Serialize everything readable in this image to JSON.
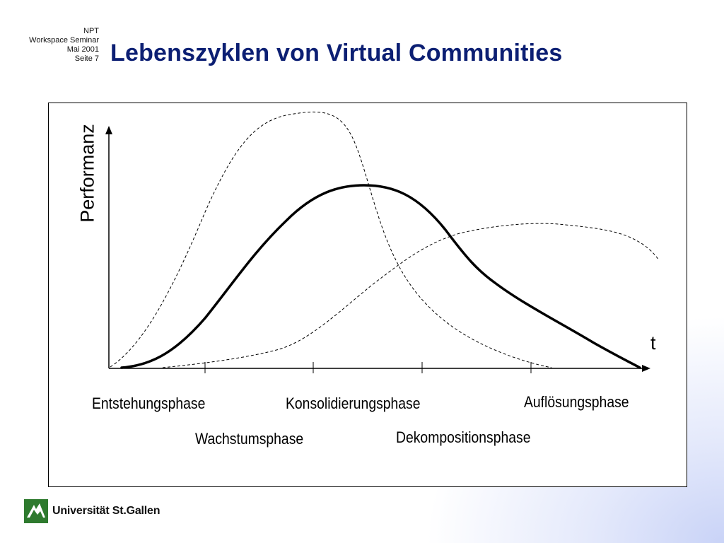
{
  "slide": {
    "meta_lines": [
      "NPT",
      "Workspace Seminar",
      "Mai 2001",
      "Seite 7"
    ],
    "title": "Lebenszyklen von Virtual Communities"
  },
  "diagram": {
    "y_axis_label": "Performanz",
    "x_axis_label": "t",
    "phases": [
      "Entstehungsphase",
      "Wachstumsphase",
      "Konsolidierungsphase",
      "Dekompositionsphase",
      "Auflösungsphase"
    ],
    "curves": [
      "solid-main-curve",
      "dashed-early-peak-curve",
      "dashed-late-plateau-curve"
    ]
  },
  "footer": {
    "logo_text": "Universität St.Gallen",
    "logo_color": "#2e7a2e"
  }
}
